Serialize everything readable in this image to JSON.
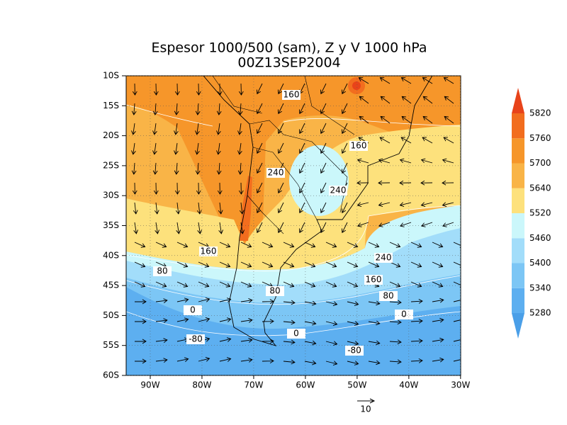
{
  "title": [
    "Espesor 1000/500 (sam), Z y V 1000 hPa",
    "00Z13SEP2004"
  ],
  "map": {
    "lat_labels": [
      "10S",
      "15S",
      "20S",
      "25S",
      "30S",
      "35S",
      "40S",
      "45S",
      "50S",
      "55S",
      "60S"
    ],
    "lon_labels": [
      "90W",
      "80W",
      "70W",
      "60W",
      "50W",
      "40W",
      "30W"
    ],
    "contour_labels": [
      160,
      160,
      240,
      240,
      240,
      160,
      160,
      80,
      80,
      80,
      0,
      0,
      0,
      -80,
      -80
    ]
  },
  "colorbar": {
    "levels": [
      5280,
      5340,
      5400,
      5460,
      5520,
      5640,
      5700,
      5760,
      5820
    ],
    "colors": [
      "#4a9fe8",
      "#5daff0",
      "#7cc6f5",
      "#a2ddfa",
      "#cbf7fb",
      "#fde17c",
      "#f9b447",
      "#f6962a",
      "#f26d1e",
      "#e8431a"
    ]
  },
  "reference_vector": {
    "label": "10"
  }
}
